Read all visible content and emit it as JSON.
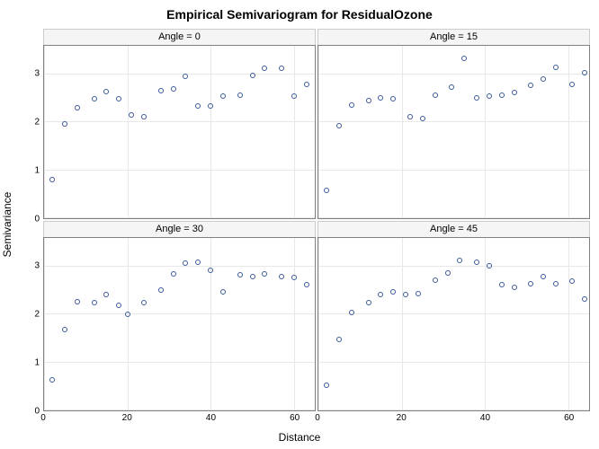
{
  "title": "Empirical Semivariogram for ResidualOzone",
  "title_fontsize": 14,
  "ylabel": "Semivariance",
  "xlabel": "Distance",
  "label_fontsize": 12,
  "tick_fontsize": 10,
  "background_color": "#ffffff",
  "grid_color": "#e8e8e8",
  "panel_border_color": "#808080",
  "header_bg_color": "#f5f5f5",
  "marker_color": "#3b5998",
  "marker_style": "open-circle",
  "marker_size": 6,
  "xlim": [
    0,
    65
  ],
  "ylim": [
    0,
    3.6
  ],
  "xticks": [
    0,
    20,
    40,
    60
  ],
  "yticks": [
    0,
    1,
    2,
    3
  ],
  "layout": {
    "rows": 2,
    "cols": 2
  },
  "panels": [
    {
      "label": "Angle = 0",
      "x": [
        2,
        5,
        8,
        12,
        15,
        18,
        21,
        24,
        28,
        31,
        34,
        37,
        40,
        43,
        47,
        50,
        53,
        57,
        60,
        63
      ],
      "y": [
        0.8,
        1.97,
        2.3,
        2.5,
        2.65,
        2.5,
        2.15,
        2.12,
        2.67,
        2.7,
        2.97,
        2.35,
        2.35,
        2.55,
        2.57,
        2.98,
        3.13,
        3.13,
        2.55,
        2.8
      ]
    },
    {
      "label": "Angle = 15",
      "x": [
        2,
        5,
        8,
        12,
        15,
        18,
        22,
        25,
        28,
        32,
        35,
        38,
        41,
        44,
        47,
        51,
        54,
        57,
        61,
        64
      ],
      "y": [
        0.58,
        1.93,
        2.37,
        2.46,
        2.52,
        2.49,
        2.11,
        2.08,
        2.57,
        2.73,
        3.33,
        2.51,
        2.55,
        2.57,
        2.63,
        2.78,
        2.9,
        3.15,
        2.8,
        3.03
      ]
    },
    {
      "label": "Angle = 30",
      "x": [
        2,
        5,
        8,
        12,
        15,
        18,
        20,
        24,
        28,
        31,
        34,
        37,
        40,
        43,
        47,
        50,
        53,
        57,
        60,
        63
      ],
      "y": [
        0.63,
        1.68,
        2.26,
        2.25,
        2.42,
        2.2,
        2.0,
        2.25,
        2.52,
        2.85,
        3.08,
        3.1,
        2.92,
        2.47,
        2.83,
        2.8,
        2.85,
        2.8,
        2.78,
        2.62
      ]
    },
    {
      "label": "Angle = 45",
      "x": [
        2,
        5,
        8,
        12,
        15,
        18,
        21,
        24,
        28,
        31,
        34,
        38,
        41,
        44,
        47,
        51,
        54,
        57,
        61,
        64
      ],
      "y": [
        0.52,
        1.48,
        2.05,
        2.25,
        2.42,
        2.47,
        2.42,
        2.43,
        2.72,
        2.86,
        3.13,
        3.1,
        3.02,
        2.62,
        2.57,
        2.65,
        2.8,
        2.65,
        2.7,
        2.33
      ]
    }
  ]
}
